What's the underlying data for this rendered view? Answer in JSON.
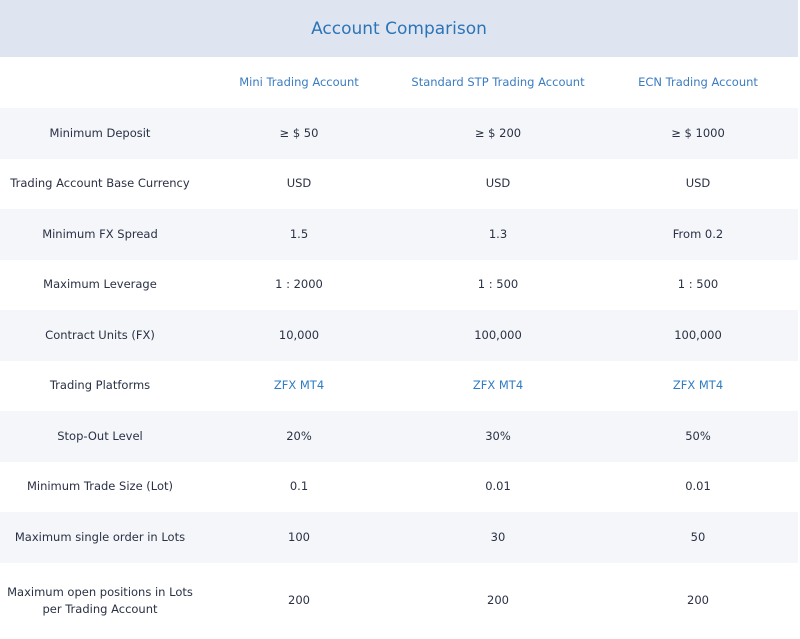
{
  "title": "Account Comparison",
  "columns": [
    "",
    "Mini Trading Account",
    "Standard STP Trading Account",
    "ECN Trading Account"
  ],
  "rows": [
    {
      "label": "Minimum Deposit",
      "values": [
        "≥ $ 50",
        "≥ $ 200",
        "≥ $ 1000"
      ]
    },
    {
      "label": "Trading Account Base Currency",
      "values": [
        "USD",
        "USD",
        "USD"
      ]
    },
    {
      "label": "Minimum FX Spread",
      "values": [
        "1.5",
        "1.3",
        "From 0.2"
      ]
    },
    {
      "label": "Maximum Leverage",
      "values": [
        "1 : 2000",
        "1 : 500",
        "1 : 500"
      ]
    },
    {
      "label": "Contract Units (FX)",
      "values": [
        "10,000",
        "100,000",
        "100,000"
      ]
    },
    {
      "label": "Trading Platforms",
      "values": [
        "ZFX MT4",
        "ZFX MT4",
        "ZFX MT4"
      ],
      "links": true
    },
    {
      "label": "Stop-Out Level",
      "values": [
        "20%",
        "30%",
        "50%"
      ]
    },
    {
      "label": "Minimum Trade Size (Lot)",
      "values": [
        "0.1",
        "0.01",
        "0.01"
      ]
    },
    {
      "label": "Maximum single order in Lots",
      "values": [
        "100",
        "30",
        "50"
      ]
    },
    {
      "label": "Maximum open positions in Lots per Trading Account",
      "values": [
        "200",
        "200",
        "200"
      ]
    }
  ],
  "colors": {
    "header_bg": "#dfe5f0",
    "accent": "#2c74b8",
    "shaded_row": "#f4f6f9",
    "text": "#2a3145"
  }
}
